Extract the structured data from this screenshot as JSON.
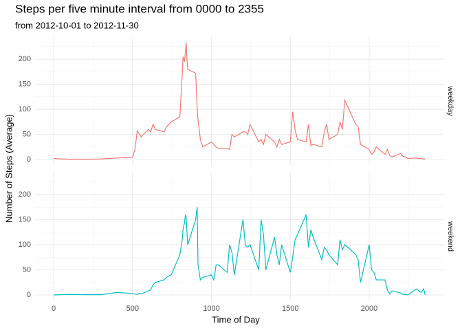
{
  "chart_data": {
    "type": "line",
    "title": "Steps per five minute interval from 0000 to 2355",
    "subtitle": "from 2012-10-01 to 2012-11-30",
    "x_label": "Time of Day",
    "y_label": "Number of Steps (Average)",
    "facet": true,
    "grid": true,
    "xlim": [
      -117.75,
      2472.75
    ],
    "xticks": [
      0,
      500,
      1000,
      1500,
      2000
    ],
    "x_minor_ticks": [
      250,
      750,
      1250,
      1750,
      2250
    ],
    "ylim": [
      -11.65,
      244.6
    ],
    "yticks": [
      0,
      50,
      100,
      150,
      200
    ],
    "y_minor_ticks": [
      25,
      75,
      125,
      175,
      225
    ],
    "x": [
      0,
      100,
      200,
      300,
      400,
      500,
      515,
      530,
      545,
      555,
      600,
      615,
      630,
      645,
      700,
      715,
      730,
      745,
      800,
      815,
      820,
      830,
      835,
      840,
      845,
      850,
      900,
      910,
      915,
      930,
      945,
      1000,
      1015,
      1030,
      1045,
      1100,
      1115,
      1130,
      1145,
      1200,
      1215,
      1230,
      1245,
      1300,
      1315,
      1330,
      1345,
      1400,
      1415,
      1430,
      1445,
      1500,
      1515,
      1530,
      1545,
      1600,
      1615,
      1630,
      1645,
      1700,
      1715,
      1730,
      1745,
      1800,
      1815,
      1830,
      1845,
      1900,
      1915,
      1930,
      1945,
      2000,
      2015,
      2030,
      2045,
      2100,
      2115,
      2130,
      2145,
      2200,
      2215,
      2230,
      2245,
      2300,
      2315,
      2330,
      2345,
      2355
    ],
    "series": [
      {
        "name": "weekday",
        "color": "#F8766D",
        "values": [
          2,
          0.5,
          0.5,
          1,
          3,
          4,
          20,
          57,
          50,
          45,
          60,
          55,
          70,
          60,
          55,
          65,
          70,
          75,
          85,
          170,
          205,
          195,
          215,
          233,
          200,
          180,
          172,
          100,
          80,
          40,
          25,
          35,
          30,
          25,
          22,
          22,
          20,
          50,
          45,
          55,
          55,
          50,
          70,
          35,
          40,
          30,
          50,
          35,
          25,
          40,
          30,
          35,
          95,
          60,
          40,
          35,
          70,
          28,
          30,
          25,
          55,
          70,
          40,
          50,
          75,
          60,
          118,
          80,
          70,
          65,
          30,
          20,
          10,
          15,
          25,
          10,
          20,
          8,
          5,
          12,
          6,
          5,
          2,
          3,
          2,
          2,
          1,
          1
        ]
      },
      {
        "name": "weekend",
        "color": "#00BFC4",
        "values": [
          0,
          1,
          0.5,
          0.5,
          5,
          3,
          2,
          1,
          3,
          2,
          8,
          10,
          20,
          25,
          30,
          35,
          38,
          40,
          80,
          110,
          130,
          145,
          160,
          155,
          125,
          100,
          150,
          175,
          60,
          30,
          35,
          40,
          30,
          60,
          60,
          45,
          100,
          85,
          40,
          150,
          100,
          95,
          100,
          50,
          150,
          120,
          50,
          115,
          80,
          60,
          100,
          45,
          75,
          110,
          120,
          160,
          95,
          130,
          115,
          70,
          95,
          90,
          80,
          60,
          110,
          90,
          100,
          85,
          80,
          70,
          25,
          100,
          50,
          45,
          30,
          30,
          10,
          2,
          8,
          4,
          1,
          1,
          0,
          12,
          8,
          5,
          12,
          0
        ]
      }
    ]
  }
}
